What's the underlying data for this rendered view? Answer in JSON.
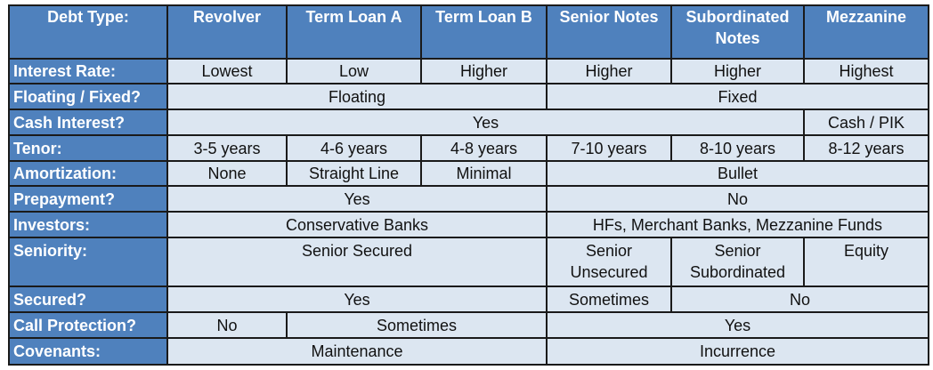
{
  "header": {
    "corner": "Debt Type:",
    "columns": [
      "Revolver",
      "Term Loan A",
      "Term Loan B",
      "Senior Notes",
      "Subordinated Notes",
      "Mezzanine"
    ]
  },
  "rows": {
    "interest_rate": {
      "label": "Interest Rate:",
      "cells": [
        "Lowest",
        "Low",
        "Higher",
        "Higher",
        "Higher",
        "Highest"
      ]
    },
    "floating_fixed": {
      "label": "Floating / Fixed?",
      "cells": [
        "Floating",
        "Fixed"
      ]
    },
    "cash_interest": {
      "label": "Cash Interest?",
      "cells": [
        "Yes",
        "Cash / PIK"
      ]
    },
    "tenor": {
      "label": "Tenor:",
      "cells": [
        "3-5 years",
        "4-6 years",
        "4-8 years",
        "7-10 years",
        "8-10 years",
        "8-12 years"
      ]
    },
    "amortization": {
      "label": "Amortization:",
      "cells": [
        "None",
        "Straight Line",
        "Minimal",
        "Bullet"
      ]
    },
    "prepayment": {
      "label": "Prepayment?",
      "cells": [
        "Yes",
        "No"
      ]
    },
    "investors": {
      "label": "Investors:",
      "cells": [
        "Conservative Banks",
        "HFs, Merchant Banks, Mezzanine Funds"
      ]
    },
    "seniority": {
      "label": "Seniority:",
      "cells": [
        "Senior Secured",
        "Senior Unsecured",
        "Senior Subordinated",
        "Equity"
      ]
    },
    "secured": {
      "label": "Secured?",
      "cells": [
        "Yes",
        "Sometimes",
        "No"
      ]
    },
    "call_protection": {
      "label": "Call Protection?",
      "cells": [
        "No",
        "Sometimes",
        "Yes"
      ]
    },
    "covenants": {
      "label": "Covenants:",
      "cells": [
        "Maintenance",
        "Incurrence"
      ]
    }
  }
}
